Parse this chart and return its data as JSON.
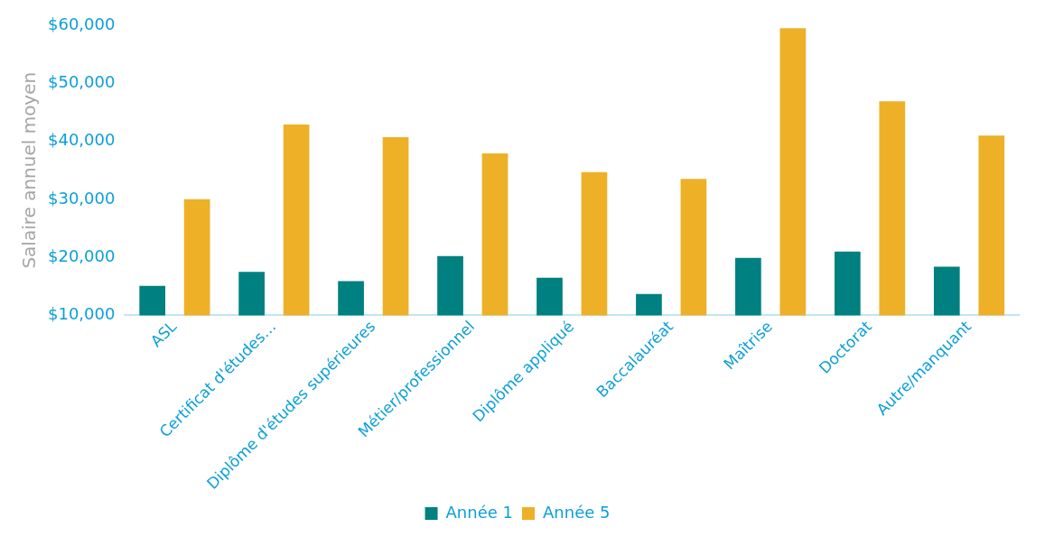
{
  "chart_data": {
    "type": "bar",
    "ylabel": "Salaire annuel moyen",
    "categories": [
      "ASL",
      "Certificat d'études…",
      "Diplôme d'études supérieures",
      "Métier/professionnel",
      "Diplôme appliqué",
      "Baccalauréat",
      "Maîtrise",
      "Doctorat",
      "Autre/manquant"
    ],
    "series": [
      {
        "name": "Année 1",
        "color": "#008080",
        "values": [
          15100,
          17500,
          15900,
          20200,
          16500,
          13700,
          19900,
          21000,
          18400
        ]
      },
      {
        "name": "Année 5",
        "color": "#edb027",
        "values": [
          30000,
          42900,
          40700,
          37900,
          34700,
          33500,
          59500,
          46900,
          41000
        ]
      }
    ],
    "ylim": [
      10000,
      60000
    ],
    "yticks": [
      {
        "value": 10000,
        "label": "$10,000"
      },
      {
        "value": 20000,
        "label": "$20,000"
      },
      {
        "value": 30000,
        "label": "$30,000"
      },
      {
        "value": 40000,
        "label": "$40,000"
      },
      {
        "value": 50000,
        "label": "$50,000"
      },
      {
        "value": 60000,
        "label": "$60,000"
      }
    ],
    "grid": false,
    "legend": "bottom"
  }
}
